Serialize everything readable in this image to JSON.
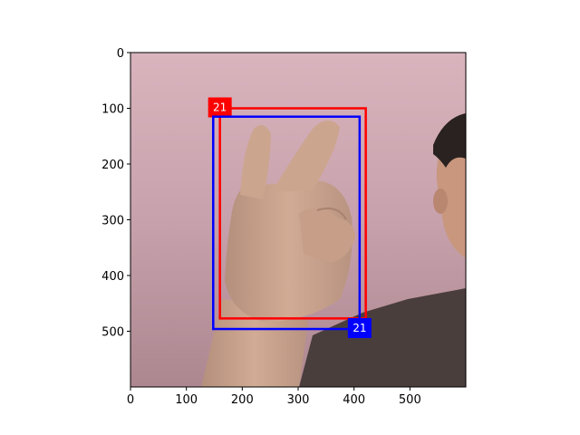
{
  "image": {
    "description_icons": [
      "hand-gesture-photo"
    ],
    "extent": {
      "x": [
        0,
        600
      ],
      "y": [
        0,
        600
      ]
    }
  },
  "axes": {
    "x_ticks": [
      0,
      100,
      200,
      300,
      400,
      500
    ],
    "y_ticks": [
      0,
      100,
      200,
      300,
      400,
      500
    ]
  },
  "boxes": [
    {
      "label": "21",
      "color": "#ff0000",
      "x1": 160,
      "y1": 100,
      "x2": 421,
      "y2": 477,
      "label_anchor": "top-left"
    },
    {
      "label": "21",
      "color": "#0000ff",
      "x1": 148,
      "y1": 115,
      "x2": 410,
      "y2": 496,
      "label_anchor": "bottom-right"
    }
  ],
  "colors": {
    "wall": "#c8a4ad",
    "skin": "#c9a28a",
    "shirt": "#4a3e3d",
    "hair": "#2a2220"
  }
}
